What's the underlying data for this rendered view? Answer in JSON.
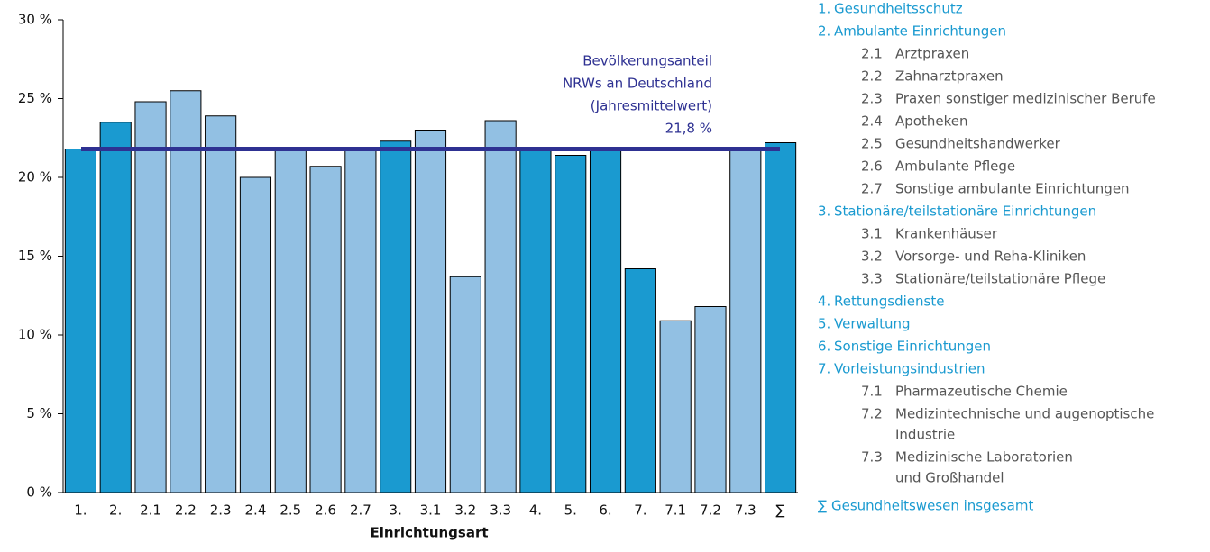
{
  "chart_data": {
    "type": "bar",
    "x_label": "Einrichtungsart",
    "categories": [
      "1.",
      "2.",
      "2.1",
      "2.2",
      "2.3",
      "2.4",
      "2.5",
      "2.6",
      "2.7",
      "3.",
      "3.1",
      "3.2",
      "3.3",
      "4.",
      "5.",
      "6.",
      "7.",
      "7.1",
      "7.2",
      "7.3",
      "∑"
    ],
    "values": [
      21.8,
      23.5,
      24.8,
      25.5,
      23.9,
      20.0,
      21.8,
      20.7,
      21.7,
      22.3,
      23.0,
      13.7,
      23.6,
      21.7,
      21.4,
      21.7,
      14.2,
      10.9,
      11.8,
      21.9,
      22.2
    ],
    "colors": [
      "#1a9ad0",
      "#1a9ad0",
      "#92c0e3",
      "#92c0e3",
      "#92c0e3",
      "#92c0e3",
      "#92c0e3",
      "#92c0e3",
      "#92c0e3",
      "#1a9ad0",
      "#92c0e3",
      "#92c0e3",
      "#92c0e3",
      "#1a9ad0",
      "#1a9ad0",
      "#1a9ad0",
      "#1a9ad0",
      "#92c0e3",
      "#92c0e3",
      "#92c0e3",
      "#1a9ad0"
    ],
    "ylim": [
      0,
      30
    ],
    "yticks": [
      {
        "value": 0,
        "label": "0 %"
      },
      {
        "value": 5,
        "label": "5 %"
      },
      {
        "value": 10,
        "label": "10 %"
      },
      {
        "value": 15,
        "label": "15 %"
      },
      {
        "value": 20,
        "label": "20 %"
      },
      {
        "value": 25,
        "label": "25 %"
      },
      {
        "value": 30,
        "label": "30 %"
      }
    ],
    "reference_line": {
      "value": 21.8,
      "label": "21,8 %",
      "color": "#2e3192",
      "text": [
        "Bevölkerungsanteil",
        "NRWs an Deutschland",
        "(Jahresmittelwert)"
      ]
    },
    "legend": [
      {
        "num": "1.",
        "lines": [
          "Gesundheitsschutz"
        ],
        "main": true
      },
      {
        "num": "2.",
        "lines": [
          "Ambulante Einrichtungen"
        ],
        "main": true
      },
      {
        "num": "2.1",
        "lines": [
          "Arztpraxen"
        ],
        "main": false
      },
      {
        "num": "2.2",
        "lines": [
          "Zahnarztpraxen"
        ],
        "main": false
      },
      {
        "num": "2.3",
        "lines": [
          "Praxen sonstiger medizinischer Berufe"
        ],
        "main": false
      },
      {
        "num": "2.4",
        "lines": [
          "Apotheken"
        ],
        "main": false
      },
      {
        "num": "2.5",
        "lines": [
          "Gesundheitshandwerker"
        ],
        "main": false
      },
      {
        "num": "2.6",
        "lines": [
          "Ambulante Pflege"
        ],
        "main": false
      },
      {
        "num": "2.7",
        "lines": [
          "Sonstige ambulante Einrichtungen"
        ],
        "main": false
      },
      {
        "num": "3.",
        "lines": [
          "Stationäre/teilstationäre Einrichtungen"
        ],
        "main": true
      },
      {
        "num": "3.1",
        "lines": [
          "Krankenhäuser"
        ],
        "main": false
      },
      {
        "num": "3.2",
        "lines": [
          "Vorsorge- und Reha-Kliniken"
        ],
        "main": false
      },
      {
        "num": "3.3",
        "lines": [
          "Stationäre/teilstationäre Pflege"
        ],
        "main": false
      },
      {
        "num": "4.",
        "lines": [
          "Rettungsdienste"
        ],
        "main": true
      },
      {
        "num": "5.",
        "lines": [
          "Verwaltung"
        ],
        "main": true
      },
      {
        "num": "6.",
        "lines": [
          "Sonstige Einrichtungen"
        ],
        "main": true
      },
      {
        "num": "7.",
        "lines": [
          "Vorleistungsindustrien"
        ],
        "main": true
      },
      {
        "num": "7.1",
        "lines": [
          "Pharmazeutische Chemie"
        ],
        "main": false
      },
      {
        "num": "7.2",
        "lines": [
          "Medizintechnische und augenoptische",
          "Industrie"
        ],
        "main": false
      },
      {
        "num": "7.3",
        "lines": [
          "Medizinische Laboratorien",
          "und Großhandel"
        ],
        "main": false
      },
      {
        "num": "∑",
        "lines": [
          "Gesundheitswesen insgesamt"
        ],
        "main": true
      }
    ],
    "legend_colors": {
      "main": "#1a9ad0",
      "sub": "#555555"
    }
  }
}
